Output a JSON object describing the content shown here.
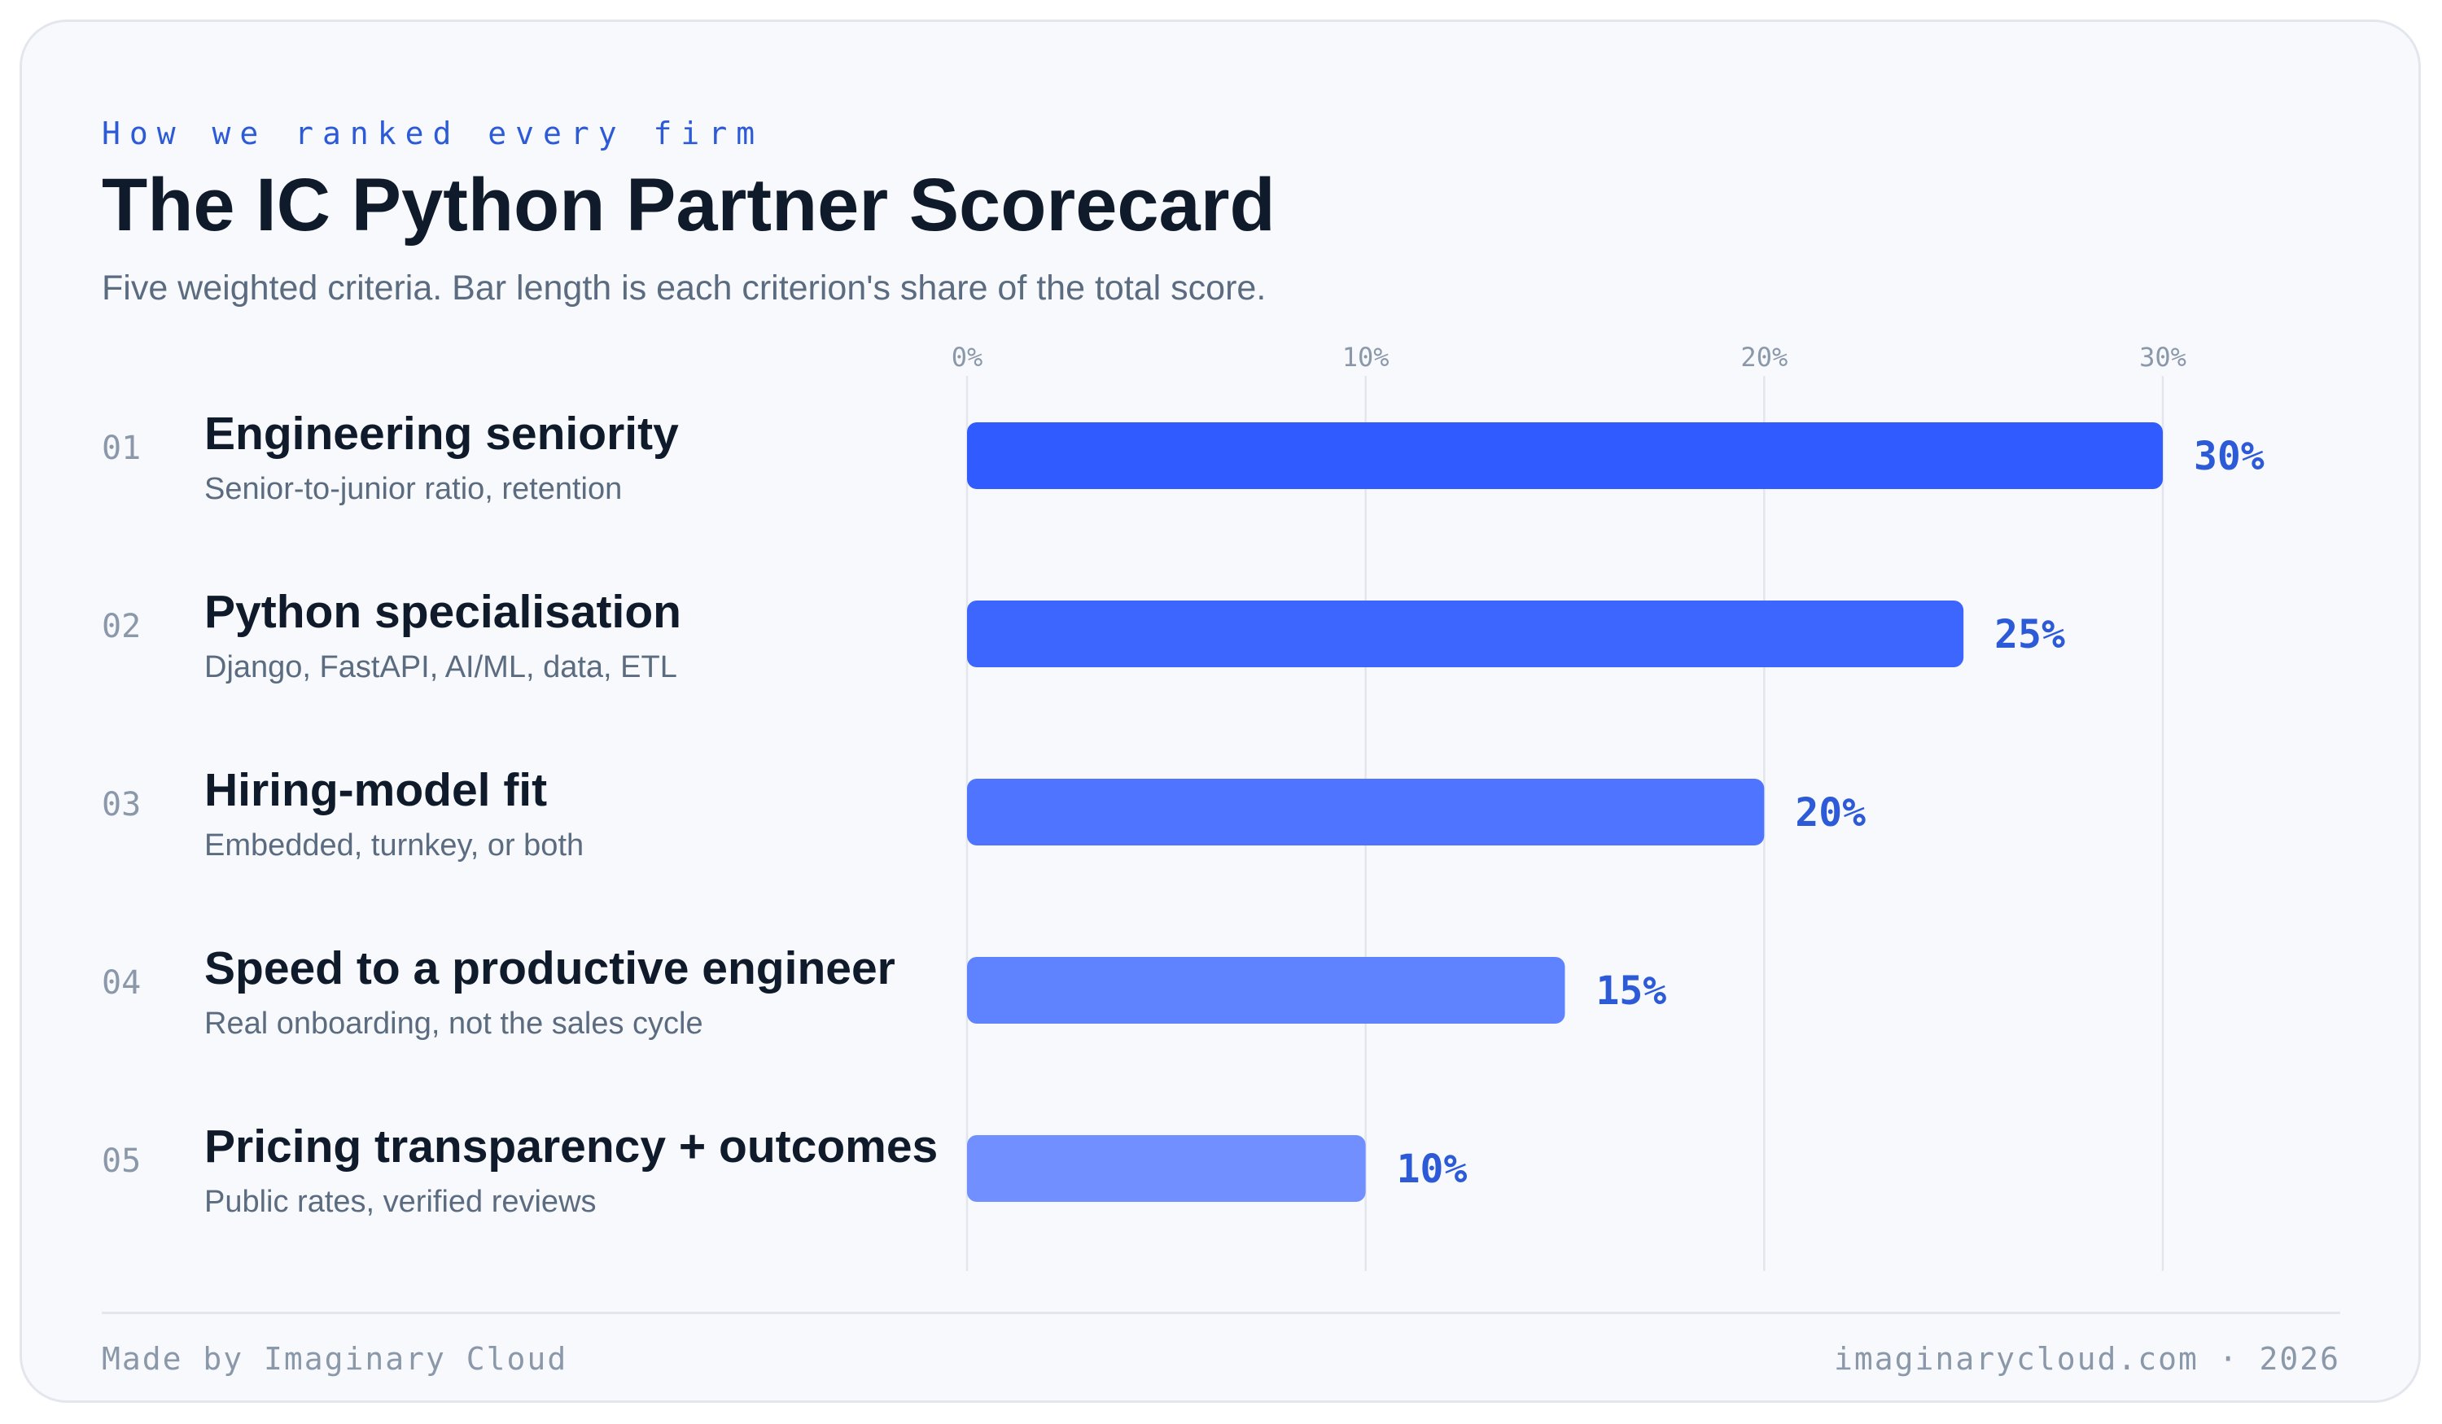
{
  "header": {
    "eyebrow": "How we ranked every firm",
    "title": "The IC Python Partner Scorecard",
    "subtitle": "Five weighted criteria. Bar length is each criterion's share of the total score."
  },
  "criteria": [
    {
      "num": "01",
      "title": "Engineering seniority",
      "sub": "Senior-to-junior ratio, retention"
    },
    {
      "num": "02",
      "title": "Python specialisation",
      "sub": "Django, FastAPI, AI/ML, data, ETL"
    },
    {
      "num": "03",
      "title": "Hiring-model fit",
      "sub": "Embedded, turnkey, or both"
    },
    {
      "num": "04",
      "title": "Speed to a productive engineer",
      "sub": "Real onboarding, not the sales cycle"
    },
    {
      "num": "05",
      "title": "Pricing transparency + outcomes",
      "sub": "Public rates, verified reviews"
    }
  ],
  "chart_data": {
    "type": "bar",
    "orientation": "horizontal",
    "categories": [
      "Engineering seniority",
      "Python specialisation",
      "Hiring-model fit",
      "Speed to a productive engineer",
      "Pricing transparency + outcomes"
    ],
    "values": [
      30,
      25,
      20,
      15,
      10
    ],
    "value_labels": [
      "30%",
      "25%",
      "20%",
      "15%",
      "10%"
    ],
    "xticks": [
      0,
      10,
      20,
      30
    ],
    "xtick_labels": [
      "0%",
      "10%",
      "20%",
      "30%"
    ],
    "xlim": [
      0,
      30
    ],
    "grid": true,
    "bar_colors": [
      "#2f5bff",
      "#3d66ff",
      "#4f74ff",
      "#5f82ff",
      "#718fff"
    ],
    "label_color": "#2d5bd8",
    "grid_color": "#e3e7ed"
  },
  "footer": {
    "left": "Made by Imaginary Cloud",
    "right": "imaginarycloud.com · 2026"
  }
}
